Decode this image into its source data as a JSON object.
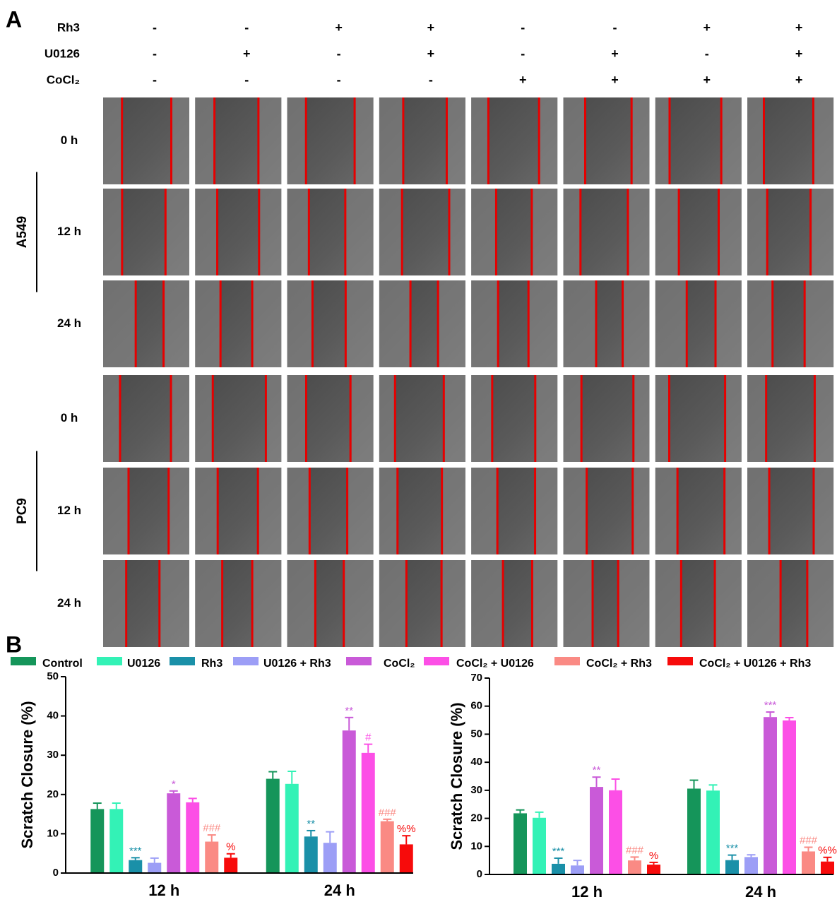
{
  "panel_a": {
    "label": "A",
    "conditions": [
      {
        "name": "Rh3",
        "signs": [
          "-",
          "-",
          "+",
          "+",
          "-",
          "-",
          "+",
          "+"
        ]
      },
      {
        "name": "U0126",
        "signs": [
          "-",
          "+",
          "-",
          "+",
          "-",
          "+",
          "-",
          "+"
        ]
      },
      {
        "name": "CoCl₂",
        "signs": [
          "-",
          "-",
          "-",
          "-",
          "+",
          "+",
          "+",
          "+"
        ]
      }
    ],
    "cell_lines": [
      {
        "name": "A549",
        "times": [
          "0 h",
          "12 h",
          "24 h"
        ]
      },
      {
        "name": "PC9",
        "times": [
          "0 h",
          "12 h",
          "24 h"
        ]
      }
    ]
  },
  "panel_b": {
    "label": "B"
  },
  "chart_data": [
    {
      "type": "bar",
      "y_label": "Scratch Closure (%)",
      "categories": [
        "12 h",
        "24 h"
      ],
      "ylim": [
        0,
        50
      ],
      "yticks": [
        0,
        10,
        20,
        30,
        40,
        50
      ],
      "series": [
        {
          "name": "Control",
          "color": "#15955a",
          "values": [
            16.3,
            24.0
          ],
          "errors": [
            1.5,
            1.8
          ],
          "annotations": [
            null,
            null
          ]
        },
        {
          "name": "U0126",
          "color": "#33f2b6",
          "values": [
            16.3,
            22.7
          ],
          "errors": [
            1.5,
            3.2
          ],
          "annotations": [
            null,
            null
          ]
        },
        {
          "name": "Rh3",
          "color": "#1a90a8",
          "values": [
            3.3,
            9.3
          ],
          "errors": [
            0.6,
            1.5
          ],
          "annotations": [
            "***",
            "**"
          ]
        },
        {
          "name": "U0126 + Rh3",
          "color": "#9c9ef6",
          "values": [
            2.6,
            7.7
          ],
          "errors": [
            1.2,
            2.8
          ],
          "annotations": [
            null,
            null
          ]
        },
        {
          "name": "CoCl₂",
          "color": "#c95ad8",
          "values": [
            20.3,
            36.3
          ],
          "errors": [
            0.6,
            3.3
          ],
          "annotations": [
            "*",
            "**"
          ]
        },
        {
          "name": "CoCl₂ + U0126",
          "color": "#fc4fe6",
          "values": [
            18.0,
            30.6
          ],
          "errors": [
            1.0,
            2.2
          ],
          "annotations": [
            null,
            "#"
          ]
        },
        {
          "name": "CoCl₂ + Rh3",
          "color": "#fa8a84",
          "values": [
            8.0,
            13.2
          ],
          "errors": [
            1.7,
            0.5
          ],
          "annotations": [
            "###",
            "###"
          ]
        },
        {
          "name": "CoCl₂ + U0126 + Rh3",
          "color": "#f70b0b",
          "values": [
            3.9,
            7.3
          ],
          "errors": [
            1.0,
            2.2
          ],
          "annotations": [
            "%",
            "%%"
          ]
        }
      ]
    },
    {
      "type": "bar",
      "y_label": "Scratch Closure (%)",
      "categories": [
        "12 h",
        "24 h"
      ],
      "ylim": [
        0,
        70
      ],
      "yticks": [
        0,
        10,
        20,
        30,
        40,
        50,
        60,
        70
      ],
      "series": [
        {
          "name": "Control",
          "color": "#15955a",
          "values": [
            21.8,
            30.6
          ],
          "errors": [
            1.2,
            3.0
          ],
          "annotations": [
            null,
            null
          ]
        },
        {
          "name": "U0126",
          "color": "#33f2b6",
          "values": [
            20.2,
            29.9
          ],
          "errors": [
            2.0,
            2.0
          ],
          "annotations": [
            null,
            null
          ]
        },
        {
          "name": "Rh3",
          "color": "#1a90a8",
          "values": [
            3.8,
            5.1
          ],
          "errors": [
            2.0,
            1.8
          ],
          "annotations": [
            "***",
            "***"
          ]
        },
        {
          "name": "U0126 + Rh3",
          "color": "#9c9ef6",
          "values": [
            3.2,
            6.2
          ],
          "errors": [
            1.8,
            0.8
          ],
          "annotations": [
            null,
            null
          ]
        },
        {
          "name": "CoCl₂",
          "color": "#c95ad8",
          "values": [
            31.2,
            56.1
          ],
          "errors": [
            3.5,
            1.8
          ],
          "annotations": [
            "**",
            "***"
          ]
        },
        {
          "name": "CoCl₂ + U0126",
          "color": "#fc4fe6",
          "values": [
            30.0,
            54.9
          ],
          "errors": [
            4.0,
            1.0
          ],
          "annotations": [
            null,
            null
          ]
        },
        {
          "name": "CoCl₂ + Rh3",
          "color": "#fa8a84",
          "values": [
            5.0,
            8.2
          ],
          "errors": [
            1.2,
            1.5
          ],
          "annotations": [
            "###",
            "###"
          ]
        },
        {
          "name": "CoCl₂ + U0126 + Rh3",
          "color": "#f70b0b",
          "values": [
            3.5,
            4.6
          ],
          "errors": [
            0.8,
            1.5
          ],
          "annotations": [
            "%",
            "%%"
          ]
        }
      ]
    }
  ]
}
